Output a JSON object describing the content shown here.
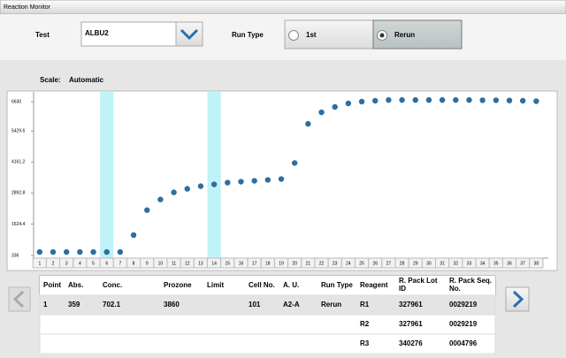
{
  "window": {
    "title": "Reaction Monitor"
  },
  "controls": {
    "test_label": "Test",
    "test_value": "ALBU2",
    "run_type_label": "Run Type",
    "options": [
      "1st",
      "Rerun"
    ],
    "selected": 1
  },
  "scale": {
    "label": "Scale:",
    "value": "Automatic"
  },
  "chart_data": {
    "type": "scatter",
    "color": "#2e6e9e",
    "band_color": "#bff3f8",
    "x": [
      1,
      2,
      3,
      4,
      5,
      6,
      7,
      8,
      9,
      10,
      11,
      12,
      13,
      14,
      15,
      16,
      17,
      18,
      19,
      20,
      21,
      22,
      23,
      24,
      25,
      26,
      27,
      28,
      29,
      30,
      31,
      32,
      33,
      34,
      35,
      36,
      37,
      38
    ],
    "values": [
      480,
      480,
      480,
      480,
      480,
      480,
      480,
      1173,
      2193,
      2630,
      2920,
      3066,
      3175,
      3248,
      3320,
      3357,
      3394,
      3430,
      3466,
      4122,
      5723,
      6196,
      6415,
      6560,
      6633,
      6670,
      6700,
      6700,
      6700,
      6700,
      6700,
      6700,
      6700,
      6690,
      6690,
      6680,
      6670,
      6650
    ],
    "highlight_x": [
      6,
      14
    ],
    "xlim": [
      0.55,
      38.9
    ],
    "xticks": [
      1,
      2,
      3,
      4,
      5,
      6,
      7,
      8,
      9,
      10,
      11,
      12,
      13,
      14,
      15,
      16,
      17,
      18,
      19,
      20,
      21,
      22,
      23,
      24,
      25,
      26,
      27,
      28,
      29,
      30,
      31,
      32,
      33,
      34,
      35,
      36,
      37,
      38
    ],
    "ylim": [
      230,
      7030
    ],
    "yticks": [
      336,
      1624.4,
      2892.8,
      4161.2,
      5429.6,
      6630
    ]
  },
  "table": {
    "headers": [
      "Point",
      "Abs.",
      "Conc.",
      "Prozone",
      "Limit",
      "Cell No.",
      "A. U.",
      "Run Type",
      "Reagent",
      "R. Pack Lot ID",
      "R. Pack Seq. No."
    ],
    "rows": [
      [
        1,
        359,
        702.1,
        3860,
        null,
        101,
        "A2-A",
        "Rerun",
        "R1",
        327961,
        "0029219"
      ],
      [
        null,
        null,
        null,
        null,
        null,
        null,
        null,
        null,
        "R2",
        327961,
        "0029219"
      ],
      [
        null,
        null,
        null,
        null,
        null,
        null,
        null,
        null,
        "R3",
        340276,
        "0004796"
      ]
    ]
  }
}
